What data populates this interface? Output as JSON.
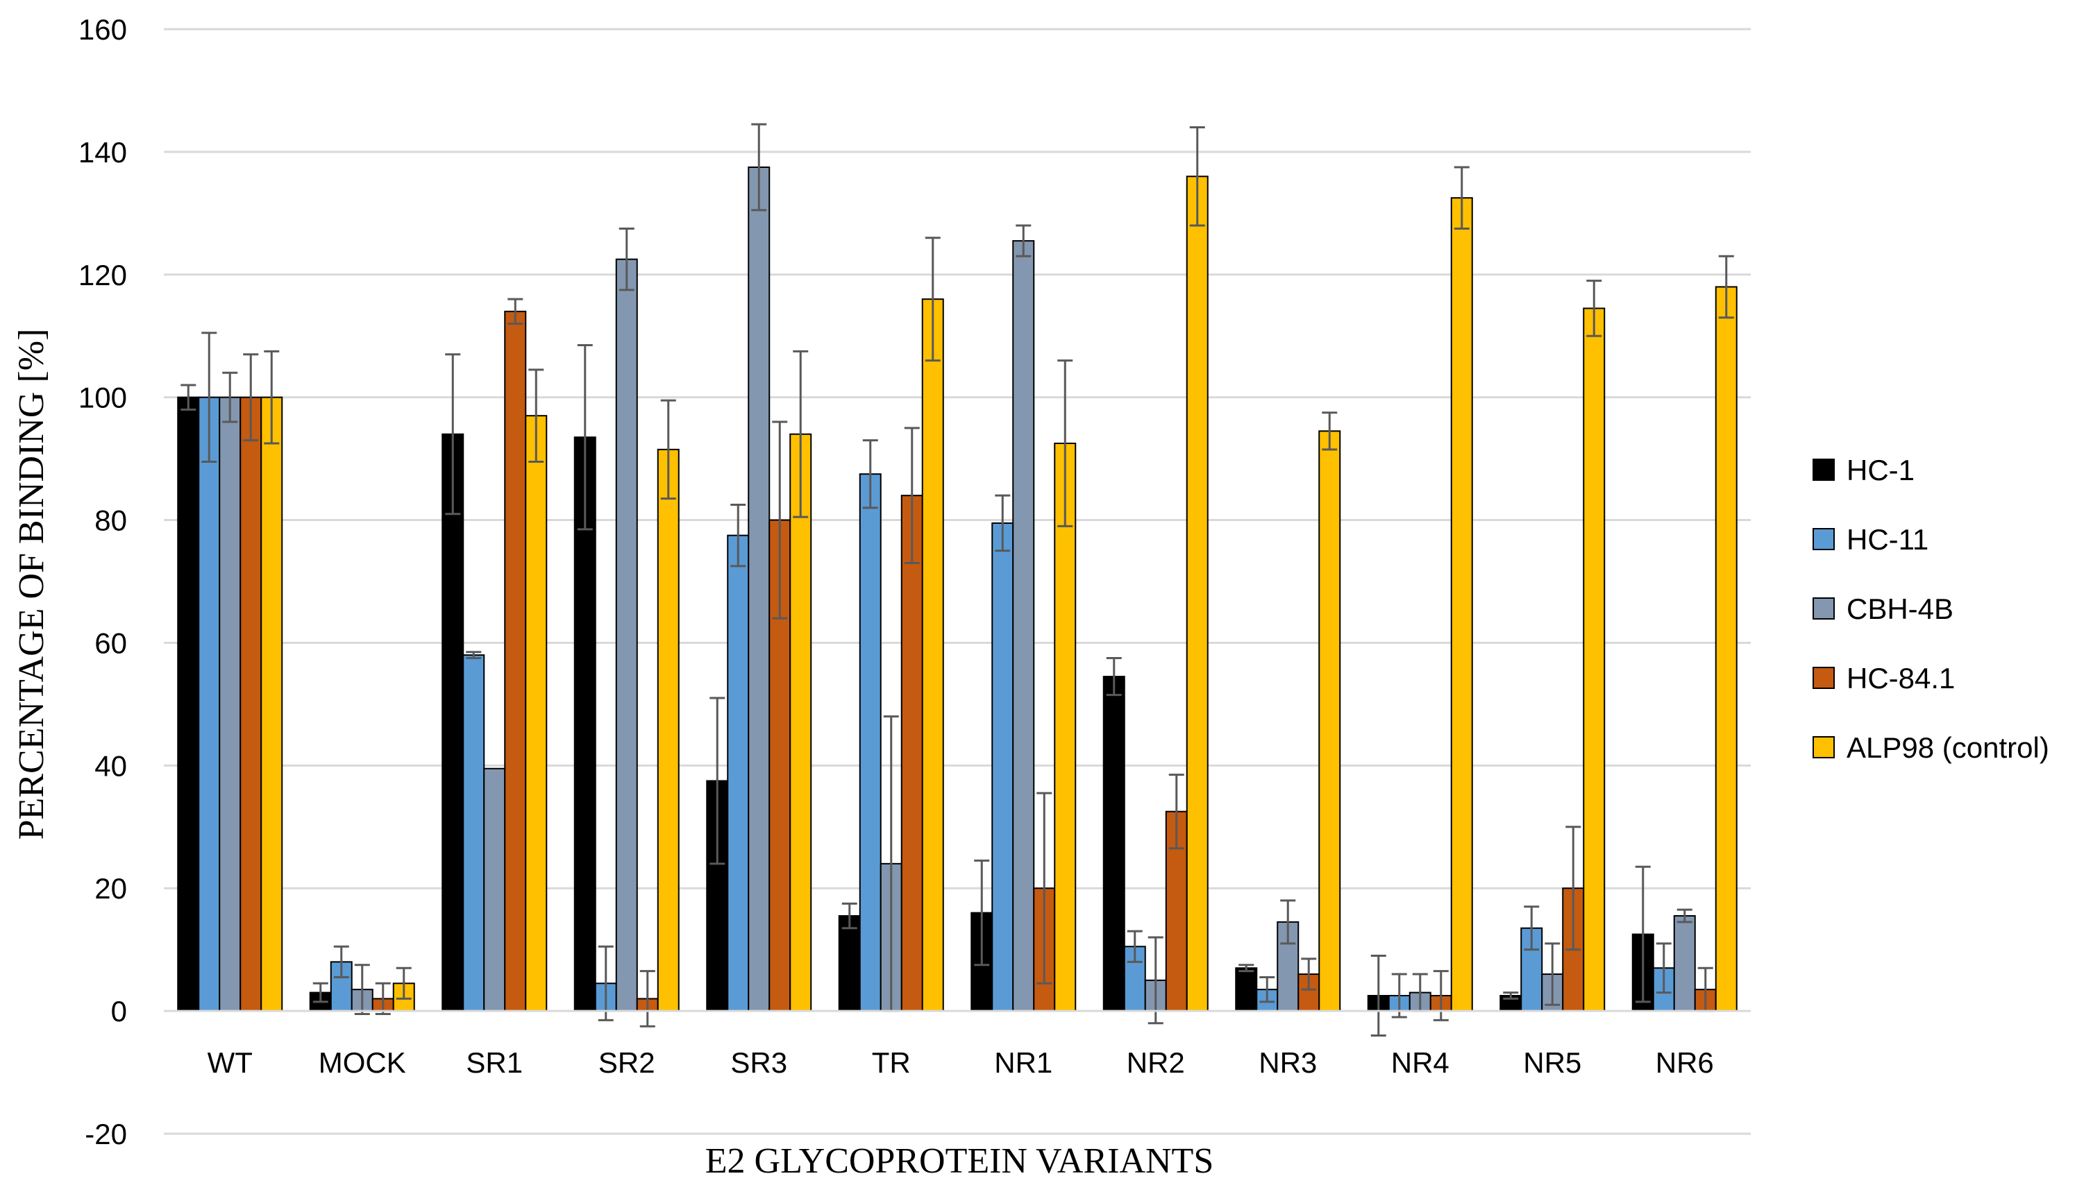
{
  "chart_data": {
    "type": "bar",
    "title": "",
    "xlabel": "E2 GLYCOPROTEIN VARIANTS",
    "ylabel": "PERCENTAGE OF BINDING [%]",
    "ylim": [
      -20,
      160
    ],
    "yticks": [
      -20,
      0,
      20,
      40,
      60,
      80,
      100,
      120,
      140,
      160
    ],
    "ytick_labels": [
      "-20",
      "0",
      "20",
      "40",
      "60",
      "80",
      "100",
      "120",
      "140",
      "160"
    ],
    "grid": true,
    "legend_position": "right",
    "categories": [
      "WT",
      "MOCK",
      "SR1",
      "SR2",
      "SR3",
      "TR",
      "NR1",
      "NR2",
      "NR3",
      "NR4",
      "NR5",
      "NR6"
    ],
    "series": [
      {
        "name": "HC-1",
        "color": "#000000",
        "values": [
          100,
          3,
          94,
          93.5,
          37.5,
          15.5,
          16,
          54.5,
          7,
          2.5,
          2.5,
          12.5
        ],
        "errors": [
          2,
          1.5,
          13,
          15,
          13.5,
          2,
          8.5,
          3,
          0.5,
          6.5,
          0.5,
          11
        ]
      },
      {
        "name": "HC-11",
        "color": "#5B9BD5",
        "values": [
          100,
          8,
          58,
          4.5,
          77.5,
          87.5,
          79.5,
          10.5,
          3.5,
          2.5,
          13.5,
          7
        ],
        "errors": [
          10.5,
          2.5,
          0.5,
          6,
          5,
          5.5,
          4.5,
          2.5,
          2,
          3.5,
          3.5,
          4
        ]
      },
      {
        "name": "CBH-4B",
        "color": "#8497B0",
        "values": [
          100,
          3.5,
          39.5,
          122.5,
          137.5,
          24,
          125.5,
          5,
          14.5,
          3,
          6,
          15.5
        ],
        "errors": [
          4,
          4,
          0,
          5,
          7,
          24,
          2.5,
          7,
          3.5,
          3,
          5,
          1
        ]
      },
      {
        "name": "HC-84.1",
        "color": "#C55A11",
        "values": [
          100,
          2,
          114,
          2,
          80,
          84,
          20,
          32.5,
          6,
          2.5,
          20,
          3.5
        ],
        "errors": [
          7,
          2.5,
          2,
          4.5,
          16,
          11,
          15.5,
          6,
          2.5,
          4,
          10,
          3.5
        ]
      },
      {
        "name": "ALP98 (control)",
        "color": "#FFC000",
        "values": [
          100,
          4.5,
          97,
          91.5,
          94,
          116,
          92.5,
          136,
          94.5,
          132.5,
          114.5,
          118
        ],
        "errors": [
          7.5,
          2.5,
          7.5,
          8,
          13.5,
          10,
          13.5,
          8,
          3,
          5,
          4.5,
          5
        ]
      }
    ]
  }
}
